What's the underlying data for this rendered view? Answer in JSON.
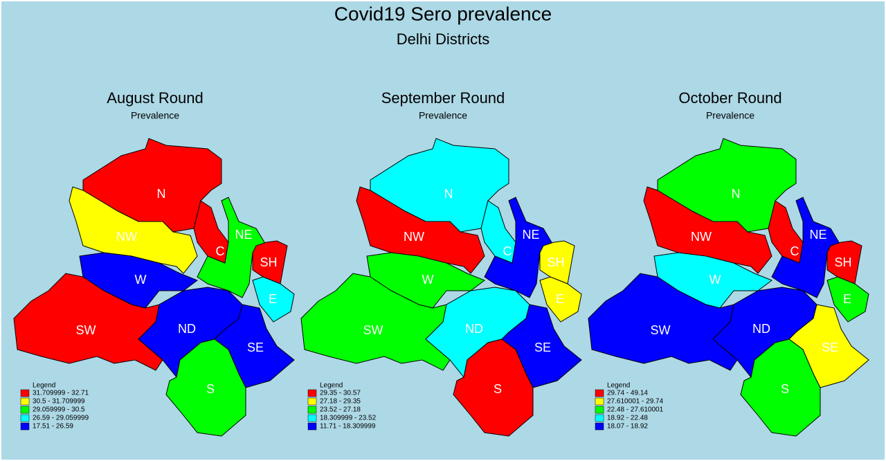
{
  "title": "Covid19 Sero prevalence",
  "subtitle": "Delhi Districts",
  "maps": [
    {
      "title": "August Round",
      "subtitle": "Prevalence",
      "legend": {
        "title": "Legend",
        "items": [
          {
            "label": "31.709999 - 32.71",
            "color": "#ff0000"
          },
          {
            "label": "30.5 - 31.709999",
            "color": "#ffff00"
          },
          {
            "label": "29.059999 - 30.5",
            "color": "#00ff00"
          },
          {
            "label": "26.59 - 29.059999",
            "color": "#00ffff"
          },
          {
            "label": "17.51 - 26.59",
            "color": "#0000ff"
          }
        ]
      },
      "districts": [
        {
          "name": "N",
          "color": "#ff0000"
        },
        {
          "name": "NW",
          "color": "#ffff00"
        },
        {
          "name": "W",
          "color": "#0000ff"
        },
        {
          "name": "SW",
          "color": "#ff0000"
        },
        {
          "name": "ND",
          "color": "#0000ff"
        },
        {
          "name": "SE",
          "color": "#0000ff"
        },
        {
          "name": "S",
          "color": "#00ff00"
        },
        {
          "name": "C",
          "color": "#ff0000"
        },
        {
          "name": "NE",
          "color": "#00ff00"
        },
        {
          "name": "SH",
          "color": "#ff0000"
        },
        {
          "name": "E",
          "color": "#00ffff"
        }
      ]
    },
    {
      "title": "September Round",
      "subtitle": "Prevalence",
      "legend": {
        "title": "Legend",
        "items": [
          {
            "label": "29.35 - 30.57",
            "color": "#ff0000"
          },
          {
            "label": "27.18 - 29.35",
            "color": "#ffff00"
          },
          {
            "label": "23.52 - 27.18",
            "color": "#00ff00"
          },
          {
            "label": "18.309999 - 23.52",
            "color": "#00ffff"
          },
          {
            "label": "11.71 - 18.309999",
            "color": "#0000ff"
          }
        ]
      },
      "districts": [
        {
          "name": "N",
          "color": "#00ffff"
        },
        {
          "name": "NW",
          "color": "#ff0000"
        },
        {
          "name": "W",
          "color": "#00ff00"
        },
        {
          "name": "SW",
          "color": "#00ff00"
        },
        {
          "name": "ND",
          "color": "#00ffff"
        },
        {
          "name": "SE",
          "color": "#0000ff"
        },
        {
          "name": "S",
          "color": "#ff0000"
        },
        {
          "name": "C",
          "color": "#00ffff"
        },
        {
          "name": "NE",
          "color": "#0000ff"
        },
        {
          "name": "SH",
          "color": "#ffff00"
        },
        {
          "name": "E",
          "color": "#ffff00"
        }
      ]
    },
    {
      "title": "October Round",
      "subtitle": "Prevalence",
      "legend": {
        "title": "Legend",
        "items": [
          {
            "label": "29.74 - 49.14",
            "color": "#ff0000"
          },
          {
            "label": "27.610001 - 29.74",
            "color": "#ffff00"
          },
          {
            "label": "22.48 - 27.610001",
            "color": "#00ff00"
          },
          {
            "label": "18.92 - 22.48",
            "color": "#00ffff"
          },
          {
            "label": "18.07 - 18.92",
            "color": "#0000ff"
          }
        ]
      },
      "districts": [
        {
          "name": "N",
          "color": "#00ff00"
        },
        {
          "name": "NW",
          "color": "#ff0000"
        },
        {
          "name": "W",
          "color": "#00ffff"
        },
        {
          "name": "SW",
          "color": "#0000ff"
        },
        {
          "name": "ND",
          "color": "#0000ff"
        },
        {
          "name": "SE",
          "color": "#ffff00"
        },
        {
          "name": "S",
          "color": "#00ff00"
        },
        {
          "name": "C",
          "color": "#ff0000"
        },
        {
          "name": "NE",
          "color": "#0000ff"
        },
        {
          "name": "SH",
          "color": "#ff0000"
        },
        {
          "name": "E",
          "color": "#00ff00"
        }
      ]
    }
  ]
}
